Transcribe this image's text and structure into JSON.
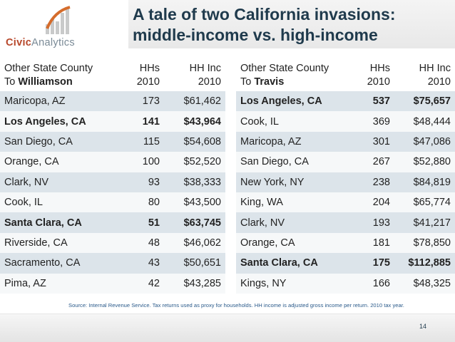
{
  "logo": {
    "brand": "Civic",
    "rest": "Analytics"
  },
  "title": {
    "line1": "A tale of two California invasions:",
    "line2": "middle-income vs. high-income"
  },
  "left_table": {
    "header": {
      "col1_line1": "Other State County",
      "col1_prefix": "To ",
      "col1_bold": "Williamson",
      "col2_line1": "HHs",
      "col2_line2": "2010",
      "col3_line1": "HH Inc",
      "col3_line2": "2010"
    },
    "rows": [
      {
        "county": "Maricopa, AZ",
        "hhs": "173",
        "inc": "$61,462",
        "highlight": false
      },
      {
        "county": "Los Angeles, CA",
        "hhs": "141",
        "inc": "$43,964",
        "highlight": true
      },
      {
        "county": "San Diego, CA",
        "hhs": "115",
        "inc": "$54,608",
        "highlight": false
      },
      {
        "county": "Orange, CA",
        "hhs": "100",
        "inc": "$52,520",
        "highlight": false
      },
      {
        "county": "Clark, NV",
        "hhs": "93",
        "inc": "$38,333",
        "highlight": false
      },
      {
        "county": "Cook, IL",
        "hhs": "80",
        "inc": "$43,500",
        "highlight": false
      },
      {
        "county": "Santa Clara, CA",
        "hhs": "51",
        "inc": "$63,745",
        "highlight": true
      },
      {
        "county": "Riverside, CA",
        "hhs": "48",
        "inc": "$46,062",
        "highlight": false
      },
      {
        "county": "Sacramento, CA",
        "hhs": "43",
        "inc": "$50,651",
        "highlight": false
      },
      {
        "county": "Pima, AZ",
        "hhs": "42",
        "inc": "$43,285",
        "highlight": false
      }
    ]
  },
  "right_table": {
    "header": {
      "col1_line1": "Other State County",
      "col1_prefix": "To ",
      "col1_bold": "Travis",
      "col2_line1": "HHs",
      "col2_line2": "2010",
      "col3_line1": "HH Inc",
      "col3_line2": "2010"
    },
    "rows": [
      {
        "county": "Los Angeles, CA",
        "hhs": "537",
        "inc": "$75,657",
        "highlight": true
      },
      {
        "county": "Cook, IL",
        "hhs": "369",
        "inc": "$48,444",
        "highlight": false
      },
      {
        "county": "Maricopa, AZ",
        "hhs": "301",
        "inc": "$47,086",
        "highlight": false
      },
      {
        "county": "San Diego, CA",
        "hhs": "267",
        "inc": "$52,880",
        "highlight": false
      },
      {
        "county": "New York, NY",
        "hhs": "238",
        "inc": "$84,819",
        "highlight": false
      },
      {
        "county": "King, WA",
        "hhs": "204",
        "inc": "$65,774",
        "highlight": false
      },
      {
        "county": "Clark, NV",
        "hhs": "193",
        "inc": "$41,217",
        "highlight": false
      },
      {
        "county": "Orange, CA",
        "hhs": "181",
        "inc": "$78,850",
        "highlight": false
      },
      {
        "county": "Santa Clara, CA",
        "hhs": "175",
        "inc": "$112,885",
        "highlight": true
      },
      {
        "county": "Kings, NY",
        "hhs": "166",
        "inc": "$48,325",
        "highlight": false
      }
    ]
  },
  "source": "Source: Internal Revenue Service. Tax returns used as proxy for households. HH income is adjusted gross income per return. 2010 tax year.",
  "page_number": "14",
  "colors": {
    "title": "#1f3a4c",
    "logo_brand": "#b7472a",
    "row_odd": "#dce4ea",
    "row_even": "#f6f8f9",
    "source": "#2a5a8a"
  }
}
